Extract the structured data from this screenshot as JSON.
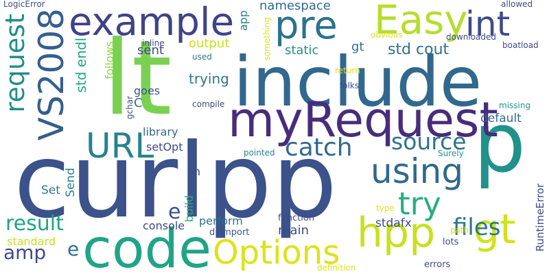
{
  "words": [
    {
      "text": "curlpp",
      "color": "#3b528b",
      "rotated": false
    },
    {
      "text": "lt",
      "color": "#7ad151",
      "rotated": false
    },
    {
      "text": "include",
      "color": "#31688e",
      "rotated": false
    },
    {
      "text": "p",
      "color": "#21918c",
      "rotated": false
    },
    {
      "text": "code",
      "color": "#20a486",
      "rotated": false
    },
    {
      "text": "myRequest",
      "color": "#472d7b",
      "rotated": false
    },
    {
      "text": "example",
      "color": "#404387",
      "rotated": false
    },
    {
      "text": "pre",
      "color": "#2c728e",
      "rotated": false
    },
    {
      "text": "Easy",
      "color": "#b5de2b",
      "rotated": false
    },
    {
      "text": "int",
      "color": "#3e4a89",
      "rotated": false
    },
    {
      "text": "VS2008",
      "color": "#355f8d",
      "rotated": true
    },
    {
      "text": "request",
      "color": "#228c8d",
      "rotated": true
    },
    {
      "text": "using",
      "color": "#30698e",
      "rotated": false
    },
    {
      "text": "hpp",
      "color": "#c8e020",
      "rotated": false
    },
    {
      "text": "gt",
      "color": "#d2e21b",
      "rotated": false
    },
    {
      "text": "URL",
      "color": "#26828e",
      "rotated": false
    },
    {
      "text": "try",
      "color": "#27ad81",
      "rotated": false
    },
    {
      "text": "Options",
      "color": "#dde318",
      "rotated": false
    },
    {
      "text": "catch",
      "color": "#31688e",
      "rotated": false
    },
    {
      "text": "source",
      "color": "#2c728e",
      "rotated": false
    },
    {
      "text": "files",
      "color": "#2a788e",
      "rotated": false
    },
    {
      "text": "result",
      "color": "#20a486",
      "rotated": false
    },
    {
      "text": "std cout",
      "color": "#2d708e",
      "rotated": false
    },
    {
      "text": "std endl",
      "color": "#21a685",
      "rotated": true
    },
    {
      "text": "amp",
      "color": "#3e4989",
      "rotated": false
    },
    {
      "text": "e",
      "color": "#3b528b",
      "rotated": false
    },
    {
      "text": "e",
      "color": "#2c728e",
      "rotated": false
    },
    {
      "text": "namespace",
      "color": "#30698e",
      "rotated": false
    },
    {
      "text": "app",
      "color": "#26828e",
      "rotated": true
    },
    {
      "text": "gt",
      "color": "#2c728e",
      "rotated": false
    },
    {
      "text": "sent",
      "color": "#3e4a89",
      "rotated": false
    },
    {
      "text": "output",
      "color": "#c8e020",
      "rotated": false
    },
    {
      "text": "static",
      "color": "#21918c",
      "rotated": false
    },
    {
      "text": "trying",
      "color": "#2a788e",
      "rotated": false
    },
    {
      "text": "follows",
      "color": "#8fd744",
      "rotated": true
    },
    {
      "text": "goes",
      "color": "#3b528b",
      "rotated": false
    },
    {
      "text": "C",
      "color": "#2d708e",
      "rotated": false
    },
    {
      "text": "library",
      "color": "#31688e",
      "rotated": false
    },
    {
      "text": "setOpt",
      "color": "#3e4a89",
      "rotated": false
    },
    {
      "text": "default",
      "color": "#31688e",
      "rotated": false
    },
    {
      "text": "h",
      "color": "#3e4a89",
      "rotated": false
    },
    {
      "text": "Set",
      "color": "#2a788e",
      "rotated": false
    },
    {
      "text": "Send",
      "color": "#26828e",
      "rotated": true
    },
    {
      "text": "build",
      "color": "#27ad81",
      "rotated": true
    },
    {
      "text": "console",
      "color": "#3e4a89",
      "rotated": false
    },
    {
      "text": "perform",
      "color": "#2d708e",
      "rotated": false
    },
    {
      "text": "main",
      "color": "#3e4a89",
      "rotated": false
    },
    {
      "text": "stdafx",
      "color": "#3e4a89",
      "rotated": false
    },
    {
      "text": "standard",
      "color": "#c8e020",
      "rotated": false
    },
    {
      "text": "RuntimeError",
      "color": "#3e4a89",
      "rotated": true
    },
    {
      "text": "function",
      "color": "#3e4a89",
      "rotated": false
    },
    {
      "text": "dllimport",
      "color": "#3b528b",
      "rotated": false
    },
    {
      "text": "lots",
      "color": "#3e4a89",
      "rotated": false
    },
    {
      "text": "errors",
      "color": "#3e4a89",
      "rotated": false
    },
    {
      "text": "definition",
      "color": "#dde318",
      "rotated": false
    },
    {
      "text": "path",
      "color": "#dde318",
      "rotated": false
    },
    {
      "text": "type",
      "color": "#dde318",
      "rotated": false
    },
    {
      "text": "Surely",
      "color": "#21918c",
      "rotated": false
    },
    {
      "text": "pointed",
      "color": "#26828e",
      "rotated": false
    },
    {
      "text": "missing",
      "color": "#21918c",
      "rotated": false
    },
    {
      "text": "return",
      "color": "#dde318",
      "rotated": false
    },
    {
      "text": "folks",
      "color": "#3e4a89",
      "rotated": false
    },
    {
      "text": "compile",
      "color": "#3e4a89",
      "rotated": false
    },
    {
      "text": "gchar",
      "color": "#3e4a89",
      "rotated": true
    },
    {
      "text": "used",
      "color": "#2a788e",
      "rotated": false
    },
    {
      "text": "inline",
      "color": "#3e4a89",
      "rotated": false
    },
    {
      "text": "something",
      "color": "#dde318",
      "rotated": true
    },
    {
      "text": "obvious",
      "color": "#dde318",
      "rotated": false
    },
    {
      "text": "downloaded",
      "color": "#3e4a89",
      "rotated": false
    },
    {
      "text": "boatload",
      "color": "#3e4a89",
      "rotated": false
    },
    {
      "text": "allowed",
      "color": "#3e4a89",
      "rotated": false
    },
    {
      "text": "LogicError",
      "color": "#3e4a89",
      "rotated": false
    }
  ]
}
